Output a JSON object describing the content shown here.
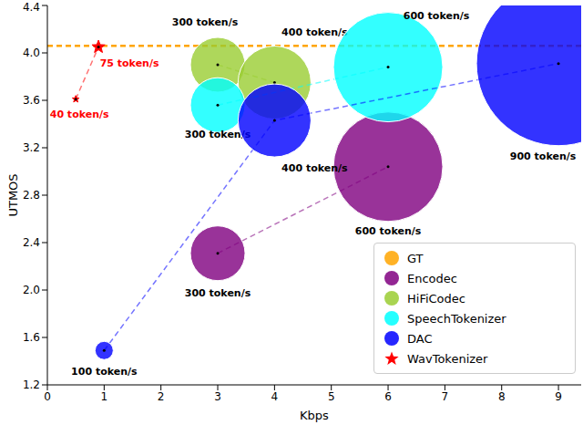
{
  "chart_data": {
    "type": "scatter",
    "x_label": "Kbps",
    "y_label": "UTMOS",
    "xlim": [
      0,
      9.4
    ],
    "xticks": [
      0,
      1,
      2,
      3,
      4,
      5,
      6,
      7,
      8,
      9
    ],
    "ylim": [
      1.2,
      4.4
    ],
    "yticks": [
      1.2,
      1.6,
      {
        "value": 2,
        "label": "2.0"
      },
      2.4,
      2.8,
      3.2,
      3.6,
      {
        "value": 4,
        "label": "4.0"
      },
      4.4
    ],
    "grid": false,
    "legend": "lower right",
    "reference_line": {
      "name": "GT",
      "value": 4.06,
      "color": "#ffa500",
      "line_style": "dashed"
    },
    "series": [
      {
        "name": "Encodec",
        "color": "#800080",
        "marker": "circle",
        "line_style": "dashed",
        "x": [
          3,
          6
        ],
        "values": [
          2.31,
          3.04
        ],
        "sizes": [
          300,
          600
        ],
        "labels": [
          "300 token/s",
          "600 token/s"
        ]
      },
      {
        "name": "HiFiCodec",
        "color": "#9acd32",
        "marker": "circle",
        "line_style": "dashed",
        "x": [
          3,
          4
        ],
        "values": [
          3.9,
          3.75
        ],
        "sizes": [
          300,
          400
        ],
        "labels": [
          "300 token/s",
          "400 token/s"
        ]
      },
      {
        "name": "SpeechTokenizer",
        "color": "#00ffff",
        "marker": "circle",
        "line_style": "dashed",
        "x": [
          3,
          6
        ],
        "values": [
          3.56,
          3.88
        ],
        "sizes": [
          300,
          600
        ],
        "labels": [
          "300 token/s",
          "600 token/s"
        ]
      },
      {
        "name": "DAC",
        "color": "#0000ff",
        "marker": "circle",
        "line_style": "dashed",
        "x": [
          1,
          4,
          9
        ],
        "values": [
          1.49,
          3.43,
          3.91
        ],
        "sizes": [
          100,
          400,
          900
        ],
        "labels": [
          "100 token/s",
          "400 token/s",
          "900 token/s"
        ]
      },
      {
        "name": "WavTokenizer",
        "color": "#ff0000",
        "marker": "star",
        "line_style": "dashed",
        "x": [
          0.5,
          0.9
        ],
        "values": [
          3.61,
          4.05
        ],
        "sizes": [
          40,
          75
        ],
        "labels": [
          "40 token/s",
          "75 token/s"
        ]
      }
    ]
  }
}
